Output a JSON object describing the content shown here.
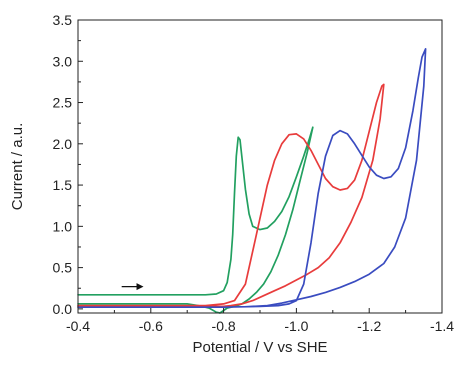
{
  "chart_data": {
    "type": "line",
    "title": "",
    "xlabel": "Potential / V vs SHE",
    "ylabel": "Current / a.u.",
    "xlim": [
      -0.4,
      -1.4
    ],
    "ylim": [
      -0.05,
      3.5
    ],
    "x_ticks": [
      {
        "value": -0.4,
        "label": "-0.4"
      },
      {
        "value": -0.6,
        "label": "-0.6"
      },
      {
        "value": -0.8,
        "label": "-0.8"
      },
      {
        "value": -1.0,
        "label": "-1.0"
      },
      {
        "value": -1.2,
        "label": "-1.2"
      },
      {
        "value": -1.4,
        "label": "-1.4"
      }
    ],
    "y_ticks": [
      {
        "value": 0.0,
        "label": "0.0"
      },
      {
        "value": 0.5,
        "label": "0.5"
      },
      {
        "value": 1.0,
        "label": "1.0"
      },
      {
        "value": 1.5,
        "label": "1.5"
      },
      {
        "value": 2.0,
        "label": "2.0"
      },
      {
        "value": 2.5,
        "label": "2.5"
      },
      {
        "value": 3.0,
        "label": "3.0"
      },
      {
        "value": 3.5,
        "label": "3.5"
      }
    ],
    "grid": false,
    "legend": "none",
    "annotations": [
      {
        "type": "arrow",
        "direction": "right",
        "from": [
          -0.52,
          0.27
        ],
        "to": [
          -0.58,
          0.27
        ]
      }
    ],
    "series": [
      {
        "color": "#22a060",
        "x": [
          -0.4,
          -0.5,
          -0.6,
          -0.7,
          -0.75,
          -0.78,
          -0.8,
          -0.81,
          -0.82,
          -0.825,
          -0.83,
          -0.835,
          -0.84,
          -0.845,
          -0.85,
          -0.86,
          -0.87,
          -0.88,
          -0.9,
          -0.92,
          -0.94,
          -0.96,
          -0.98,
          -1.0,
          -1.02,
          -1.035,
          -1.045,
          -1.045,
          -1.03,
          -1.01,
          -0.99,
          -0.97,
          -0.95,
          -0.93,
          -0.91,
          -0.89,
          -0.87,
          -0.85,
          -0.83,
          -0.81,
          -0.8,
          -0.79,
          -0.78,
          -0.76,
          -0.73,
          -0.7,
          -0.65,
          -0.6,
          -0.5,
          -0.4
        ],
        "y": [
          0.17,
          0.17,
          0.17,
          0.17,
          0.17,
          0.18,
          0.22,
          0.32,
          0.6,
          0.9,
          1.4,
          1.85,
          2.08,
          2.05,
          1.85,
          1.45,
          1.15,
          1.0,
          0.96,
          0.98,
          1.06,
          1.18,
          1.36,
          1.6,
          1.85,
          2.05,
          2.2,
          2.2,
          1.9,
          1.55,
          1.2,
          0.9,
          0.65,
          0.45,
          0.3,
          0.2,
          0.12,
          0.06,
          0.03,
          0.01,
          -0.02,
          -0.05,
          -0.04,
          0.01,
          0.04,
          0.06,
          0.06,
          0.06,
          0.06,
          0.06
        ]
      },
      {
        "color": "#e83c3c",
        "x": [
          -0.4,
          -0.6,
          -0.75,
          -0.8,
          -0.83,
          -0.86,
          -0.89,
          -0.92,
          -0.94,
          -0.96,
          -0.98,
          -1.0,
          -1.02,
          -1.04,
          -1.06,
          -1.08,
          -1.1,
          -1.12,
          -1.14,
          -1.16,
          -1.18,
          -1.2,
          -1.22,
          -1.235,
          -1.24,
          -1.23,
          -1.21,
          -1.18,
          -1.15,
          -1.12,
          -1.09,
          -1.06,
          -1.03,
          -1.0,
          -0.97,
          -0.94,
          -0.91,
          -0.88,
          -0.85,
          -0.82,
          -0.8,
          -0.75,
          -0.6,
          -0.4
        ],
        "y": [
          0.04,
          0.04,
          0.04,
          0.06,
          0.1,
          0.3,
          0.9,
          1.5,
          1.8,
          2.0,
          2.11,
          2.12,
          2.06,
          1.92,
          1.75,
          1.58,
          1.48,
          1.44,
          1.46,
          1.56,
          1.8,
          2.15,
          2.5,
          2.7,
          2.72,
          2.3,
          1.8,
          1.35,
          1.05,
          0.8,
          0.62,
          0.5,
          0.42,
          0.35,
          0.28,
          0.22,
          0.16,
          0.1,
          0.06,
          0.04,
          0.03,
          0.03,
          0.03,
          0.03
        ]
      },
      {
        "color": "#3a4cc0",
        "x": [
          -0.4,
          -0.6,
          -0.8,
          -0.9,
          -0.95,
          -0.98,
          -1.0,
          -1.02,
          -1.04,
          -1.06,
          -1.08,
          -1.1,
          -1.12,
          -1.14,
          -1.16,
          -1.18,
          -1.2,
          -1.22,
          -1.24,
          -1.26,
          -1.28,
          -1.3,
          -1.32,
          -1.335,
          -1.345,
          -1.355,
          -1.35,
          -1.33,
          -1.3,
          -1.27,
          -1.24,
          -1.2,
          -1.16,
          -1.12,
          -1.08,
          -1.04,
          -1.0,
          -0.96,
          -0.92,
          -0.88,
          -0.84,
          -0.8,
          -0.6,
          -0.4
        ],
        "y": [
          0.02,
          0.02,
          0.02,
          0.03,
          0.04,
          0.06,
          0.1,
          0.3,
          0.8,
          1.4,
          1.85,
          2.1,
          2.16,
          2.12,
          2.0,
          1.86,
          1.72,
          1.62,
          1.58,
          1.6,
          1.7,
          1.95,
          2.4,
          2.8,
          3.05,
          3.15,
          2.7,
          1.8,
          1.1,
          0.75,
          0.55,
          0.42,
          0.33,
          0.26,
          0.2,
          0.15,
          0.11,
          0.07,
          0.04,
          0.03,
          0.02,
          0.02,
          0.02,
          0.02
        ]
      }
    ]
  }
}
